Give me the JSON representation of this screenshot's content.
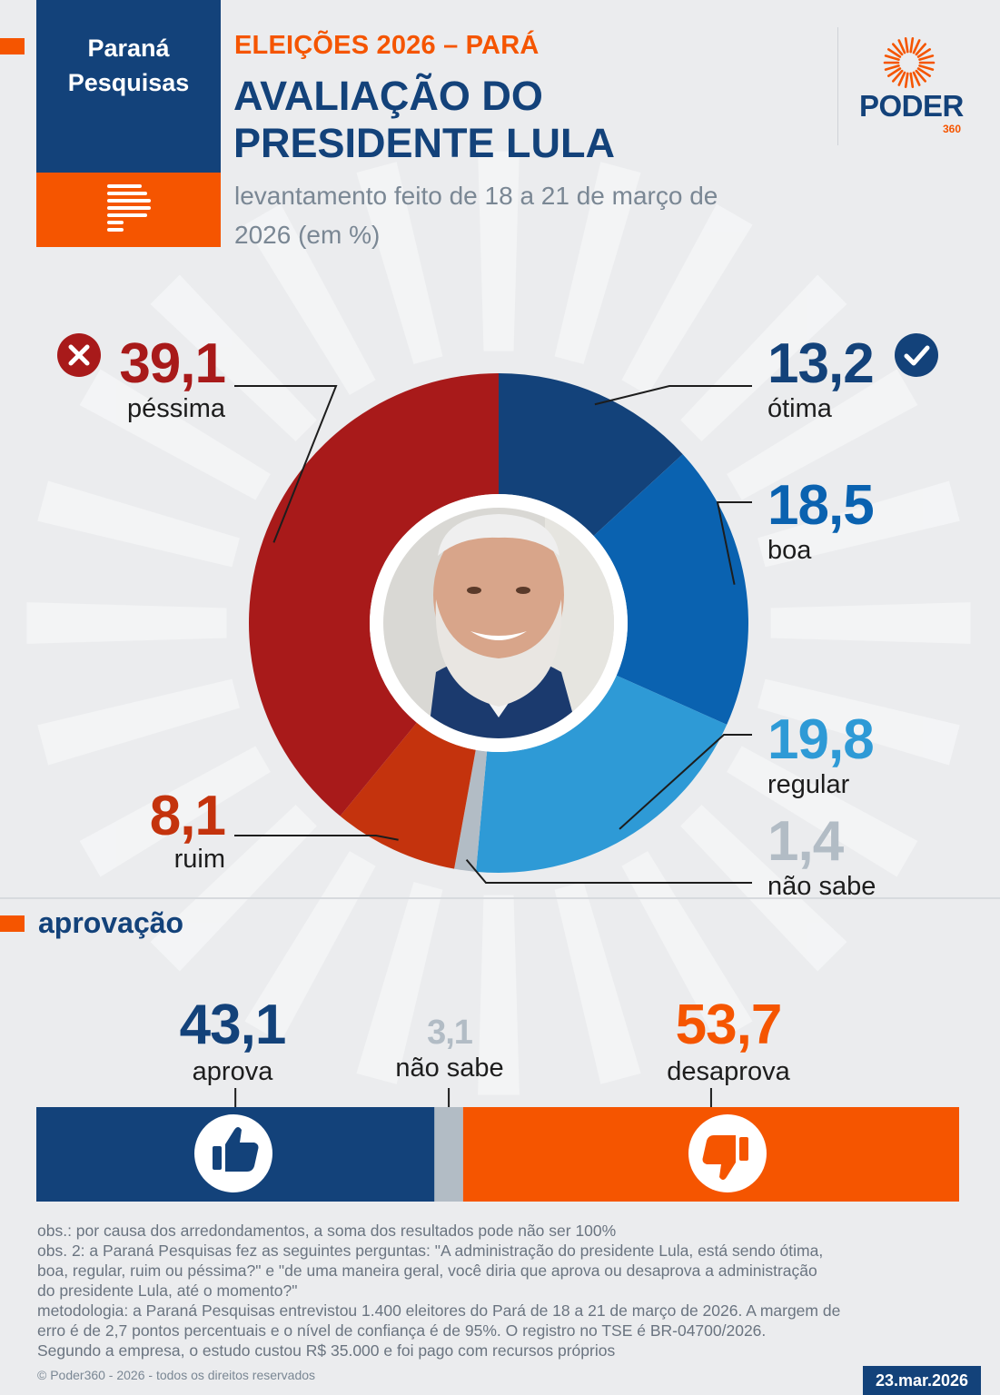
{
  "header": {
    "logo_line1": "Paraná",
    "logo_line2": "Pesquisas",
    "kicker": "ELEIÇÕES 2026 – PARÁ",
    "title_line1": "AVALIAÇÃO DO",
    "title_line2": "PRESIDENTE LULA",
    "subtitle_line1": "levantamento feito de 18 a 21 de março de",
    "subtitle_line2": "2026 (em %)",
    "brand_word": "PODER",
    "brand_number": "360"
  },
  "donut_labels": {
    "pessima_value": "39,1",
    "pessima_label": "péssima",
    "otima_value": "13,2",
    "otima_label": "ótima",
    "boa_value": "18,5",
    "boa_label": "boa",
    "regular_value": "19,8",
    "regular_label": "regular",
    "ruim_value": "8,1",
    "ruim_label": "ruim",
    "naosabe_value": "1,4",
    "naosabe_label": "não sabe"
  },
  "approval": {
    "section_title": "aprovação",
    "aprova_value": "43,1",
    "aprova_label": "aprova",
    "naosabe_value": "3,1",
    "naosabe_label": "não sabe",
    "desaprova_value": "53,7",
    "desaprova_label": "desaprova"
  },
  "notes": {
    "line1": "obs.: por causa dos arredondamentos, a soma dos resultados pode não ser 100%",
    "line2": "obs. 2: a Paraná Pesquisas fez as seguintes perguntas: \"A administração do presidente Lula, está sendo ótima,",
    "line3": "boa, regular, ruim ou péssima?\" e \"de uma maneira geral, você diria que aprova ou desaprova a administração",
    "line4": "do presidente Lula, até o momento?\"",
    "line5": "metodologia: a Paraná Pesquisas entrevistou 1.400 eleitores do Pará de 18 a 21 de março de 2026. A margem de",
    "line6": "erro é de 2,7 pontos percentuais e o nível de confiança é de 95%. O registro no TSE é BR-04700/2026.",
    "line7": "Segundo a empresa, o estudo custou R$ 35.000 e foi pago com recursos próprios"
  },
  "footer": {
    "copyright": "© Poder360 - 2026 - todos os direitos reservados",
    "date": "23.mar.2026"
  },
  "colors": {
    "navy": "#13427a",
    "orange": "#f55500",
    "pessima": "#a81a1a",
    "ruim": "#c4330d",
    "otima": "#13427a",
    "boa": "#0a62b0",
    "regular": "#2e9ad6",
    "naosabe": "#b2bcc5"
  },
  "chart_data": [
    {
      "type": "pie",
      "title": "AVALIAÇÃO DO PRESIDENTE LULA",
      "categories": [
        "ótima",
        "boa",
        "regular",
        "não sabe",
        "ruim",
        "péssima"
      ],
      "values": [
        13.2,
        18.5,
        19.8,
        1.4,
        8.1,
        39.1
      ],
      "colors": [
        "#13427a",
        "#0a62b0",
        "#2e9ad6",
        "#b2bcc5",
        "#c4330d",
        "#a81a1a"
      ],
      "style": "donut"
    },
    {
      "type": "bar",
      "title": "aprovação",
      "orientation": "horizontal-stacked",
      "categories": [
        "aprova",
        "não sabe",
        "desaprova"
      ],
      "values": [
        43.1,
        3.1,
        53.7
      ],
      "colors": [
        "#13427a",
        "#b2bcc5",
        "#f55500"
      ]
    }
  ]
}
